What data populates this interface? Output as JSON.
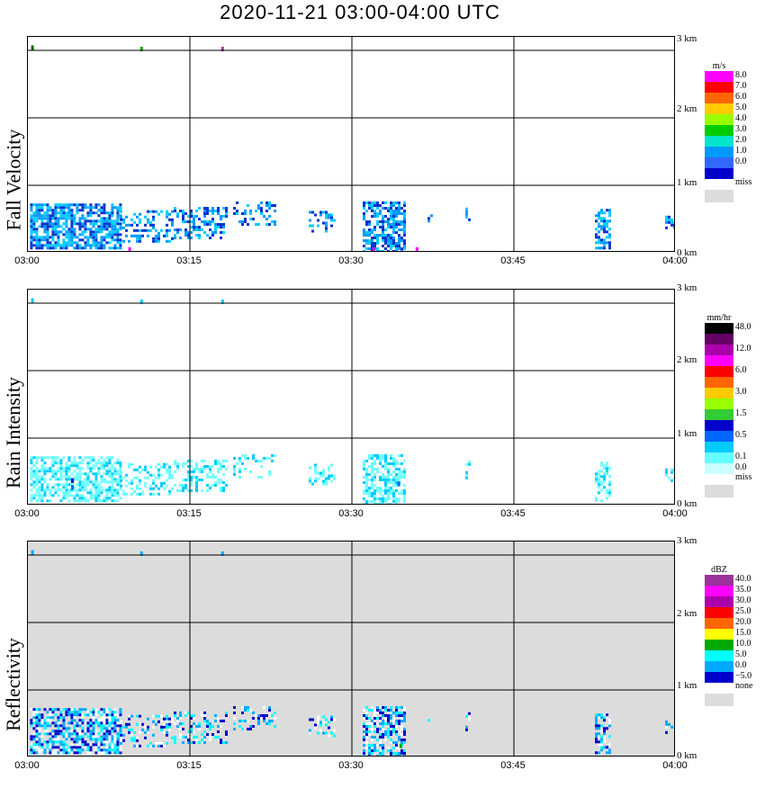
{
  "title": "2020-11-21   03:00-04:00 UTC",
  "x_ticks": [
    "03:00",
    "03:15",
    "03:30",
    "03:45",
    "04:00"
  ],
  "height_ticks": [
    "3 km",
    "2 km",
    "1 km",
    "0 km"
  ],
  "colors": {
    "grid": "#000000",
    "panel_bg_reflectivity": "#dcdcdc",
    "miss": "#dcdcdc"
  },
  "chart_data": [
    {
      "type": "heatmap",
      "ylabel": "Fall Velocity",
      "legend": {
        "unit": "m/s",
        "levels": [
          {
            "label": "8.0",
            "color": "#ff00ff"
          },
          {
            "label": "7.0",
            "color": "#ff0000"
          },
          {
            "label": "6.0",
            "color": "#ff6600"
          },
          {
            "label": "5.0",
            "color": "#ffcc00"
          },
          {
            "label": "4.0",
            "color": "#99ff00"
          },
          {
            "label": "3.0",
            "color": "#00cc00"
          },
          {
            "label": "2.0",
            "color": "#00e5cc"
          },
          {
            "label": "1.0",
            "color": "#0099ff"
          },
          {
            "label": "0.0",
            "color": "#3366ff"
          },
          {
            "label": "",
            "color": "#0000cc"
          }
        ],
        "miss_label": "miss"
      },
      "ylim_km": [
        0,
        3.2
      ],
      "xlim": [
        "03:00",
        "04:00"
      ],
      "background": "#ffffff",
      "dominant_colors": [
        "#0033cc",
        "#0099ff",
        "#00ccff"
      ],
      "clusters": [
        {
          "t0": 0.2,
          "t1": 8.5,
          "hmin": 0.05,
          "hmax": 0.7,
          "density": 0.75
        },
        {
          "t0": 8.5,
          "t1": 13.5,
          "hmin": 0.15,
          "hmax": 0.6,
          "density": 0.35
        },
        {
          "t0": 13.5,
          "t1": 18.5,
          "hmin": 0.2,
          "hmax": 0.65,
          "density": 0.4
        },
        {
          "t0": 19,
          "t1": 23,
          "hmin": 0.4,
          "hmax": 0.75,
          "density": 0.3
        },
        {
          "t0": 26,
          "t1": 28.5,
          "hmin": 0.3,
          "hmax": 0.6,
          "density": 0.3
        },
        {
          "t0": 31,
          "t1": 35,
          "hmin": 0.0,
          "hmax": 0.75,
          "density": 0.6
        },
        {
          "t0": 37,
          "t1": 37.5,
          "hmin": 0.45,
          "hmax": 0.55,
          "density": 0.4
        },
        {
          "t0": 40.5,
          "t1": 41,
          "hmin": 0.35,
          "hmax": 0.7,
          "density": 0.5
        },
        {
          "t0": 52.5,
          "t1": 54,
          "hmin": 0.05,
          "hmax": 0.65,
          "density": 0.6
        },
        {
          "t0": 59,
          "t1": 59.8,
          "hmin": 0.35,
          "hmax": 0.55,
          "density": 0.5
        }
      ],
      "accents": [
        {
          "t": 9.3,
          "h": 0.03,
          "color": "#ff00ff"
        },
        {
          "t": 31.9,
          "h": 0.03,
          "color": "#ff00ff"
        },
        {
          "t": 35.9,
          "h": 0.03,
          "color": "#ff00ff"
        },
        {
          "t": 10.4,
          "h": 3.0,
          "color": "#00aa00"
        },
        {
          "t": 17.9,
          "h": 3.0,
          "color": "#aa3399"
        },
        {
          "t": 0.3,
          "h": 3.02,
          "color": "#006600"
        }
      ]
    },
    {
      "type": "heatmap",
      "ylabel": "Rain Intensity",
      "legend": {
        "unit": "mm/hr",
        "levels": [
          {
            "label": "48.0",
            "color": "#000000"
          },
          {
            "label": "",
            "color": "#660066"
          },
          {
            "label": "12.0",
            "color": "#aa00aa"
          },
          {
            "label": "",
            "color": "#ff00ff"
          },
          {
            "label": "6.0",
            "color": "#ff0000"
          },
          {
            "label": "",
            "color": "#ff6600"
          },
          {
            "label": "3.0",
            "color": "#ffcc00"
          },
          {
            "label": "",
            "color": "#99ff00"
          },
          {
            "label": "1.5",
            "color": "#33cc33"
          },
          {
            "label": "",
            "color": "#0000cc"
          },
          {
            "label": "0.5",
            "color": "#0066ff"
          },
          {
            "label": "",
            "color": "#00ccff"
          },
          {
            "label": "0.1",
            "color": "#66ffff"
          },
          {
            "label": "0.0",
            "color": "#ccffff"
          }
        ],
        "miss_label": "miss"
      },
      "ylim_km": [
        0,
        3.2
      ],
      "xlim": [
        "03:00",
        "04:00"
      ],
      "background": "#ffffff",
      "dominant_colors": [
        "#80ffff",
        "#66ffff",
        "#00ccff"
      ],
      "clusters": [
        {
          "t0": 0.2,
          "t1": 8.5,
          "hmin": 0.05,
          "hmax": 0.7,
          "density": 0.65
        },
        {
          "t0": 8.5,
          "t1": 13.5,
          "hmin": 0.15,
          "hmax": 0.6,
          "density": 0.35
        },
        {
          "t0": 13.5,
          "t1": 18.5,
          "hmin": 0.2,
          "hmax": 0.65,
          "density": 0.4
        },
        {
          "t0": 19,
          "t1": 23,
          "hmin": 0.4,
          "hmax": 0.75,
          "density": 0.3
        },
        {
          "t0": 26,
          "t1": 28.5,
          "hmin": 0.3,
          "hmax": 0.6,
          "density": 0.3
        },
        {
          "t0": 31,
          "t1": 35,
          "hmin": 0.0,
          "hmax": 0.75,
          "density": 0.55
        },
        {
          "t0": 40.5,
          "t1": 41,
          "hmin": 0.35,
          "hmax": 0.7,
          "density": 0.5
        },
        {
          "t0": 52.5,
          "t1": 54,
          "hmin": 0.05,
          "hmax": 0.65,
          "density": 0.55
        },
        {
          "t0": 59,
          "t1": 59.8,
          "hmin": 0.35,
          "hmax": 0.55,
          "density": 0.5
        }
      ],
      "accents": [
        {
          "t": 4.0,
          "h": 0.35,
          "color": "#0000cc"
        },
        {
          "t": 4.0,
          "h": 0.25,
          "color": "#0066ff"
        },
        {
          "t": 34.2,
          "h": 0.3,
          "color": "#0066ff"
        },
        {
          "t": 10.4,
          "h": 3.0,
          "color": "#00ccff"
        },
        {
          "t": 17.9,
          "h": 3.0,
          "color": "#00ccff"
        },
        {
          "t": 0.3,
          "h": 3.02,
          "color": "#00ccff"
        }
      ]
    },
    {
      "type": "heatmap",
      "ylabel": "Reflectivity",
      "legend": {
        "unit": "dBZ",
        "levels": [
          {
            "label": "40.0",
            "color": "#993399"
          },
          {
            "label": "35.0",
            "color": "#ff00ff"
          },
          {
            "label": "30.0",
            "color": "#aa00aa"
          },
          {
            "label": "25.0",
            "color": "#ff0000"
          },
          {
            "label": "20.0",
            "color": "#ff6600"
          },
          {
            "label": "15.0",
            "color": "#ffff00"
          },
          {
            "label": "10.0",
            "color": "#00aa00"
          },
          {
            "label": "5.0",
            "color": "#00ffff"
          },
          {
            "label": "0.0",
            "color": "#00aaff"
          },
          {
            "label": "−5.0",
            "color": "#0000cc"
          }
        ],
        "miss_label": "none"
      },
      "ylim_km": [
        0,
        3.2
      ],
      "xlim": [
        "03:00",
        "04:00"
      ],
      "background": "#dcdcdc",
      "dominant_colors": [
        "#0000cc",
        "#00aaff",
        "#ffffff",
        "#00ffff"
      ],
      "clusters": [
        {
          "t0": 0.2,
          "t1": 8.5,
          "hmin": 0.05,
          "hmax": 0.7,
          "density": 0.75
        },
        {
          "t0": 8.5,
          "t1": 13.5,
          "hmin": 0.15,
          "hmax": 0.6,
          "density": 0.35
        },
        {
          "t0": 13.5,
          "t1": 18.5,
          "hmin": 0.2,
          "hmax": 0.65,
          "density": 0.4
        },
        {
          "t0": 19,
          "t1": 23,
          "hmin": 0.4,
          "hmax": 0.75,
          "density": 0.3
        },
        {
          "t0": 26,
          "t1": 28.5,
          "hmin": 0.3,
          "hmax": 0.6,
          "density": 0.3
        },
        {
          "t0": 31,
          "t1": 35,
          "hmin": 0.0,
          "hmax": 0.75,
          "density": 0.6
        },
        {
          "t0": 37,
          "t1": 37.5,
          "hmin": 0.45,
          "hmax": 0.55,
          "density": 0.4
        },
        {
          "t0": 40.5,
          "t1": 41,
          "hmin": 0.35,
          "hmax": 0.7,
          "density": 0.5
        },
        {
          "t0": 52.5,
          "t1": 54,
          "hmin": 0.05,
          "hmax": 0.65,
          "density": 0.6
        },
        {
          "t0": 59,
          "t1": 59.8,
          "hmin": 0.35,
          "hmax": 0.55,
          "density": 0.5
        }
      ],
      "accents": [
        {
          "t": 34.4,
          "h": 0.15,
          "color": "#00aa00"
        },
        {
          "t": 10.4,
          "h": 3.0,
          "color": "#00aaff"
        },
        {
          "t": 17.9,
          "h": 3.0,
          "color": "#00aaff"
        },
        {
          "t": 0.3,
          "h": 3.02,
          "color": "#00aaff"
        }
      ]
    }
  ]
}
